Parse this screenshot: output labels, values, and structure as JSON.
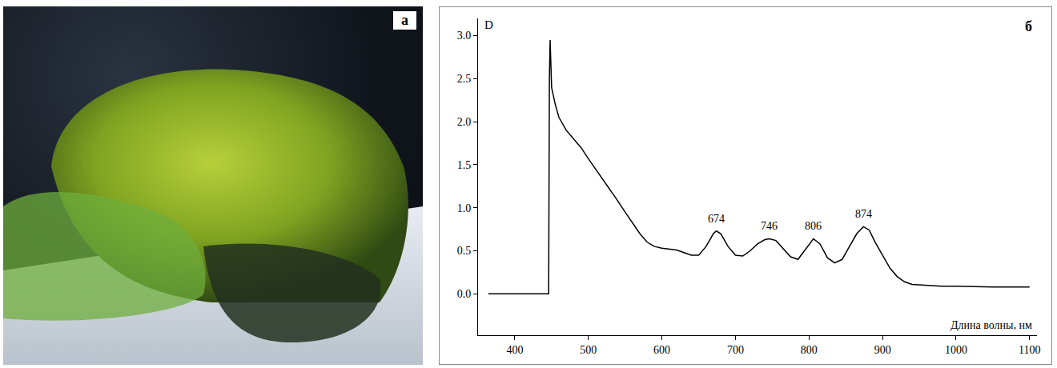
{
  "photo_panel": {
    "label": "а"
  },
  "chart_data": {
    "type": "line",
    "panel_label": "б",
    "y_label": "D",
    "x_label": "Длина волны, нм",
    "color": "#000000",
    "grid": false,
    "xlim": [
      350,
      1110
    ],
    "xticks": [
      400,
      500,
      600,
      700,
      800,
      900,
      1000,
      1100
    ],
    "ylim": [
      -0.48,
      3.2
    ],
    "yticks": [
      {
        "value": 0,
        "label": "0.0"
      },
      {
        "value": 0.5,
        "label": "0.5"
      },
      {
        "value": 1,
        "label": "1.0"
      },
      {
        "value": 1.5,
        "label": "1.5"
      },
      {
        "value": 2,
        "label": "2.0"
      },
      {
        "value": 2.5,
        "label": "2.5"
      },
      {
        "value": 3,
        "label": "3.0"
      }
    ],
    "x": [
      364,
      400,
      440,
      446,
      447,
      448,
      450,
      455,
      460,
      470,
      480,
      490,
      500,
      510,
      520,
      530,
      540,
      550,
      560,
      570,
      580,
      590,
      600,
      610,
      620,
      630,
      640,
      650,
      660,
      670,
      674,
      680,
      690,
      700,
      710,
      720,
      730,
      740,
      746,
      755,
      765,
      775,
      785,
      795,
      806,
      815,
      825,
      835,
      845,
      855,
      865,
      874,
      882,
      890,
      900,
      910,
      920,
      930,
      940,
      960,
      980,
      1000,
      1050,
      1100
    ],
    "values": [
      0,
      0,
      0,
      0,
      2.5,
      2.95,
      2.4,
      2.2,
      2.05,
      1.9,
      1.8,
      1.7,
      1.57,
      1.45,
      1.33,
      1.2,
      1.08,
      0.95,
      0.82,
      0.7,
      0.6,
      0.55,
      0.53,
      0.52,
      0.51,
      0.48,
      0.45,
      0.45,
      0.55,
      0.7,
      0.73,
      0.7,
      0.55,
      0.45,
      0.44,
      0.5,
      0.58,
      0.63,
      0.64,
      0.62,
      0.53,
      0.43,
      0.4,
      0.52,
      0.64,
      0.58,
      0.42,
      0.36,
      0.4,
      0.55,
      0.7,
      0.78,
      0.74,
      0.6,
      0.45,
      0.3,
      0.2,
      0.14,
      0.11,
      0.1,
      0.09,
      0.09,
      0.08,
      0.08
    ],
    "annotations": [
      {
        "text": "674",
        "x": 674,
        "y": 0.73
      },
      {
        "text": "746",
        "x": 746,
        "y": 0.64
      },
      {
        "text": "806",
        "x": 806,
        "y": 0.64
      },
      {
        "text": "874",
        "x": 874,
        "y": 0.78
      }
    ]
  }
}
